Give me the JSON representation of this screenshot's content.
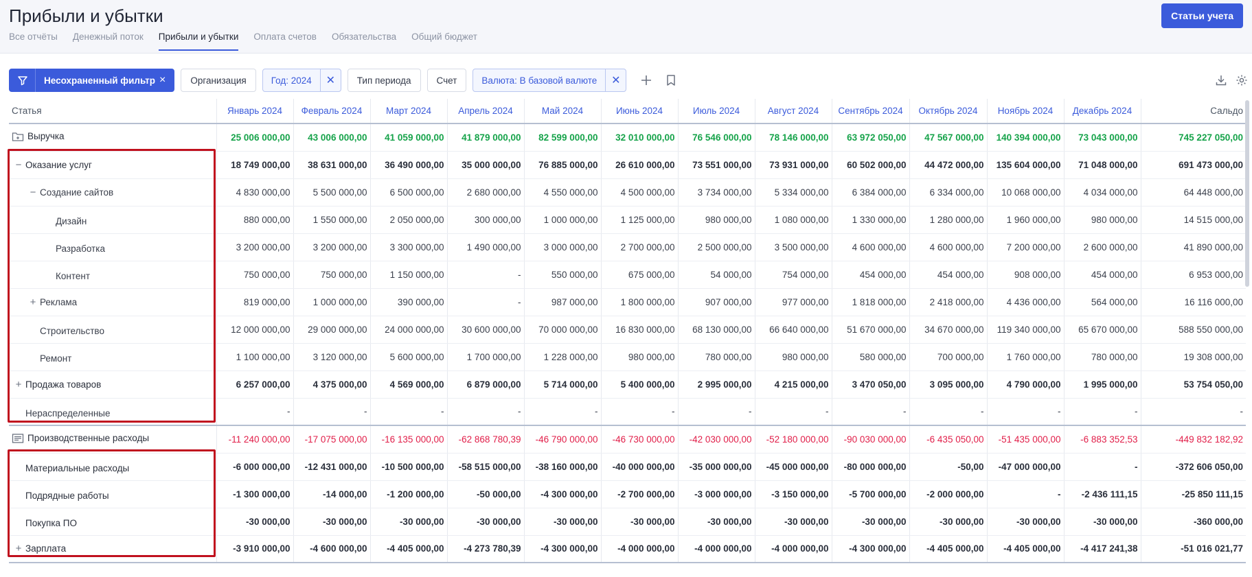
{
  "header": {
    "title": "Прибыли и убытки",
    "primary_button": "Статьи учета",
    "tabs": [
      {
        "label": "Все отчёты",
        "active": false
      },
      {
        "label": "Денежный поток",
        "active": false
      },
      {
        "label": "Прибыли и убытки",
        "active": true
      },
      {
        "label": "Оплата счетов",
        "active": false
      },
      {
        "label": "Обязательства",
        "active": false
      },
      {
        "label": "Общий бюджет",
        "active": false
      }
    ]
  },
  "filters": {
    "saved_filter_label": "Несохраненный фильтр",
    "organization": "Организация",
    "year": "Год: 2024",
    "period_type": "Тип периода",
    "account": "Счет",
    "currency": "Валюта: В базовой валюте"
  },
  "colors": {
    "accent": "#3b5bdb",
    "positive": "#16a34a",
    "negative": "#e11d48",
    "highlight_box": "#c0101e"
  },
  "table": {
    "columns": [
      "Статья",
      "Январь 2024",
      "Февраль 2024",
      "Март 2024",
      "Апрель 2024",
      "Май 2024",
      "Июнь 2024",
      "Июль 2024",
      "Август 2024",
      "Сентябрь 2024",
      "Октябрь 2024",
      "Ноябрь 2024",
      "Декабрь 2024",
      "Сальдо"
    ],
    "rows": [
      {
        "name": "Выручка",
        "kind": "group-rev",
        "level": 0,
        "icon": "folder-icon",
        "toggle": "",
        "values": [
          "25 006 000,00",
          "43 006 000,00",
          "41 059 000,00",
          "41 879 000,00",
          "82 599 000,00",
          "32 010 000,00",
          "76 546 000,00",
          "78 146 000,00",
          "63 972 050,00",
          "47 567 000,00",
          "140 394 000,00",
          "73 043 000,00",
          "745 227 050,00"
        ]
      },
      {
        "name": "Оказание услуг",
        "kind": "bold",
        "level": 1,
        "toggle": "−",
        "values": [
          "18 749 000,00",
          "38 631 000,00",
          "36 490 000,00",
          "35 000 000,00",
          "76 885 000,00",
          "26 610 000,00",
          "73 551 000,00",
          "73 931 000,00",
          "60 502 000,00",
          "44 472 000,00",
          "135 604 000,00",
          "71 048 000,00",
          "691 473 000,00"
        ]
      },
      {
        "name": "Создание сайтов",
        "kind": "normal",
        "level": 2,
        "toggle": "−",
        "values": [
          "4 830 000,00",
          "5 500 000,00",
          "6 500 000,00",
          "2 680 000,00",
          "4 550 000,00",
          "4 500 000,00",
          "3 734 000,00",
          "5 334 000,00",
          "6 384 000,00",
          "6 334 000,00",
          "10 068 000,00",
          "4 034 000,00",
          "64 448 000,00"
        ]
      },
      {
        "name": "Дизайн",
        "kind": "normal",
        "level": 3,
        "toggle": "",
        "values": [
          "880 000,00",
          "1 550 000,00",
          "2 050 000,00",
          "300 000,00",
          "1 000 000,00",
          "1 125 000,00",
          "980 000,00",
          "1 080 000,00",
          "1 330 000,00",
          "1 280 000,00",
          "1 960 000,00",
          "980 000,00",
          "14 515 000,00"
        ]
      },
      {
        "name": "Разработка",
        "kind": "normal",
        "level": 3,
        "toggle": "",
        "values": [
          "3 200 000,00",
          "3 200 000,00",
          "3 300 000,00",
          "1 490 000,00",
          "3 000 000,00",
          "2 700 000,00",
          "2 500 000,00",
          "3 500 000,00",
          "4 600 000,00",
          "4 600 000,00",
          "7 200 000,00",
          "2 600 000,00",
          "41 890 000,00"
        ]
      },
      {
        "name": "Контент",
        "kind": "normal",
        "level": 3,
        "toggle": "",
        "values": [
          "750 000,00",
          "750 000,00",
          "1 150 000,00",
          "-",
          "550 000,00",
          "675 000,00",
          "54 000,00",
          "754 000,00",
          "454 000,00",
          "454 000,00",
          "908 000,00",
          "454 000,00",
          "6 953 000,00"
        ]
      },
      {
        "name": "Реклама",
        "kind": "normal",
        "level": 2,
        "toggle": "+",
        "values": [
          "819 000,00",
          "1 000 000,00",
          "390 000,00",
          "-",
          "987 000,00",
          "1 800 000,00",
          "907 000,00",
          "977 000,00",
          "1 818 000,00",
          "2 418 000,00",
          "4 436 000,00",
          "564 000,00",
          "16 116 000,00"
        ]
      },
      {
        "name": "Строительство",
        "kind": "normal",
        "level": 2,
        "toggle": "",
        "values": [
          "12 000 000,00",
          "29 000 000,00",
          "24 000 000,00",
          "30 600 000,00",
          "70 000 000,00",
          "16 830 000,00",
          "68 130 000,00",
          "66 640 000,00",
          "51 670 000,00",
          "34 670 000,00",
          "119 340 000,00",
          "65 670 000,00",
          "588 550 000,00"
        ]
      },
      {
        "name": "Ремонт",
        "kind": "normal",
        "level": 2,
        "toggle": "",
        "values": [
          "1 100 000,00",
          "3 120 000,00",
          "5 600 000,00",
          "1 700 000,00",
          "1 228 000,00",
          "980 000,00",
          "780 000,00",
          "980 000,00",
          "580 000,00",
          "700 000,00",
          "1 760 000,00",
          "780 000,00",
          "19 308 000,00"
        ]
      },
      {
        "name": "Продажа товаров",
        "kind": "bold",
        "level": 1,
        "toggle": "+",
        "values": [
          "6 257 000,00",
          "4 375 000,00",
          "4 569 000,00",
          "6 879 000,00",
          "5 714 000,00",
          "5 400 000,00",
          "2 995 000,00",
          "4 215 000,00",
          "3 470 050,00",
          "3 095 000,00",
          "4 790 000,00",
          "1 995 000,00",
          "53 754 050,00"
        ]
      },
      {
        "name": "Нераспределенные",
        "kind": "normal",
        "level": 1,
        "toggle": "",
        "values": [
          "-",
          "-",
          "-",
          "-",
          "-",
          "-",
          "-",
          "-",
          "-",
          "-",
          "-",
          "-",
          "-"
        ]
      },
      {
        "name": "Производственные расходы",
        "kind": "group-exp",
        "level": 0,
        "icon": "list-icon",
        "toggle": "",
        "values": [
          "-11 240 000,00",
          "-17 075 000,00",
          "-16 135 000,00",
          "-62 868 780,39",
          "-46 790 000,00",
          "-46 730 000,00",
          "-42 030 000,00",
          "-52 180 000,00",
          "-90 030 000,00",
          "-6 435 050,00",
          "-51 435 000,00",
          "-6 883 352,53",
          "-449 832 182,92"
        ]
      },
      {
        "name": "Материальные расходы",
        "kind": "bold",
        "level": 1,
        "toggle": "",
        "values": [
          "-6 000 000,00",
          "-12 431 000,00",
          "-10 500 000,00",
          "-58 515 000,00",
          "-38 160 000,00",
          "-40 000 000,00",
          "-35 000 000,00",
          "-45 000 000,00",
          "-80 000 000,00",
          "-50,00",
          "-47 000 000,00",
          "-",
          "-372 606 050,00"
        ]
      },
      {
        "name": "Подрядные работы",
        "kind": "bold",
        "level": 1,
        "toggle": "",
        "values": [
          "-1 300 000,00",
          "-14 000,00",
          "-1 200 000,00",
          "-50 000,00",
          "-4 300 000,00",
          "-2 700 000,00",
          "-3 000 000,00",
          "-3 150 000,00",
          "-5 700 000,00",
          "-2 000 000,00",
          "-",
          "-2 436 111,15",
          "-25 850 111,15"
        ]
      },
      {
        "name": "Покупка ПО",
        "kind": "bold",
        "level": 1,
        "toggle": "",
        "values": [
          "-30 000,00",
          "-30 000,00",
          "-30 000,00",
          "-30 000,00",
          "-30 000,00",
          "-30 000,00",
          "-30 000,00",
          "-30 000,00",
          "-30 000,00",
          "-30 000,00",
          "-30 000,00",
          "-30 000,00",
          "-360 000,00"
        ]
      },
      {
        "name": "Зарплата",
        "kind": "bold",
        "level": 1,
        "toggle": "+",
        "values": [
          "-3 910 000,00",
          "-4 600 000,00",
          "-4 405 000,00",
          "-4 273 780,39",
          "-4 300 000,00",
          "-4 000 000,00",
          "-4 000 000,00",
          "-4 000 000,00",
          "-4 300 000,00",
          "-4 405 000,00",
          "-4 405 000,00",
          "-4 417 241,38",
          "-51 016 021,77"
        ]
      }
    ]
  }
}
